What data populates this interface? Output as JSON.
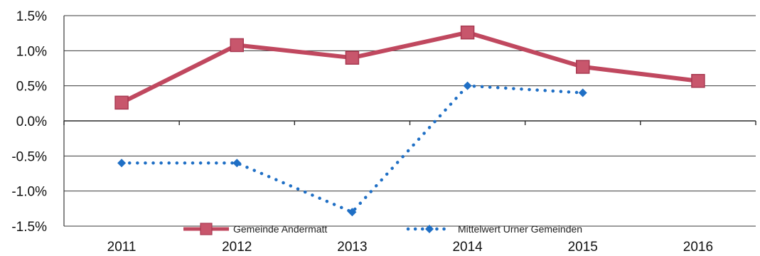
{
  "chart_data": {
    "type": "line",
    "categories": [
      "2011",
      "2012",
      "2013",
      "2014",
      "2015",
      "2016"
    ],
    "series": [
      {
        "name": "Gemeinde Andermatt",
        "values": [
          0.26,
          1.08,
          0.9,
          1.26,
          0.77,
          0.57
        ],
        "color": "#c0485f",
        "line": "solid",
        "marker": "square"
      },
      {
        "name": "Mittelwert Urner Gemeinden",
        "values": [
          -0.6,
          -0.6,
          -1.3,
          0.5,
          0.4,
          null
        ],
        "color": "#1f6fc5",
        "line": "dotted",
        "marker": "diamond"
      }
    ],
    "ylim": [
      -1.5,
      1.5
    ],
    "yticks": [
      "1.5%",
      "1.0%",
      "0.5%",
      "0.0%",
      "-0.5%",
      "-1.0%",
      "-1.5%"
    ],
    "grid": true,
    "legend_position": "bottom",
    "title": "",
    "xlabel": "",
    "ylabel": ""
  }
}
